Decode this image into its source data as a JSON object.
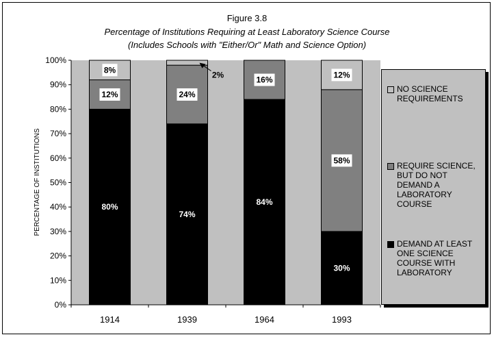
{
  "figure_label": "Figure 3.8",
  "title": "Percentage of Institutions Requiring at Least Laboratory Science Course",
  "subtitle": "(Includes Schools with \"Either/Or\" Math and Science Option)",
  "colors": {
    "background": "#c0c0c0",
    "no_science": "#c0c0c0",
    "science_no_lab": "#808080",
    "lab_required": "#000000"
  },
  "chart_data": {
    "type": "bar",
    "stacked": true,
    "title": "Figure 3.8",
    "subtitle": "Percentage of Institutions Requiring at Least Laboratory Science Course (Includes Schools with \"Either/Or\" Math and Science Option)",
    "xlabel": "",
    "ylabel": "PERCENTAGE OF INSTITUTIONS",
    "ylim": [
      0,
      100
    ],
    "yticks": [
      "0%",
      "10%",
      "20%",
      "30%",
      "40%",
      "50%",
      "60%",
      "70%",
      "80%",
      "90%",
      "100%"
    ],
    "categories": [
      "1914",
      "1939",
      "1964",
      "1993"
    ],
    "series": [
      {
        "name": "DEMAND AT LEAST ONE SCIENCE COURSE WITH LABORATORY",
        "values": [
          80,
          74,
          84,
          30
        ],
        "labels": [
          "80%",
          "74%",
          "84%",
          "30%"
        ]
      },
      {
        "name": "REQUIRE SCIENCE, BUT DO NOT DEMAND A LABORATORY COURSE",
        "values": [
          12,
          24,
          16,
          58
        ],
        "labels": [
          "12%",
          "24%",
          "16%",
          "58%"
        ]
      },
      {
        "name": "NO SCIENCE REQUIREMENTS",
        "values": [
          8,
          2,
          0,
          12
        ],
        "labels": [
          "8%",
          "2%",
          "",
          "12%"
        ]
      }
    ],
    "legend": {
      "position": "right",
      "entries": [
        {
          "label": "NO SCIENCE REQUIREMENTS",
          "color": "#c0c0c0"
        },
        {
          "label": "REQUIRE SCIENCE, BUT DO NOT DEMAND A LABORATORY COURSE",
          "color": "#808080"
        },
        {
          "label": "DEMAND AT LEAST ONE SCIENCE COURSE WITH LABORATORY",
          "color": "#000000"
        }
      ]
    },
    "grid": false
  }
}
